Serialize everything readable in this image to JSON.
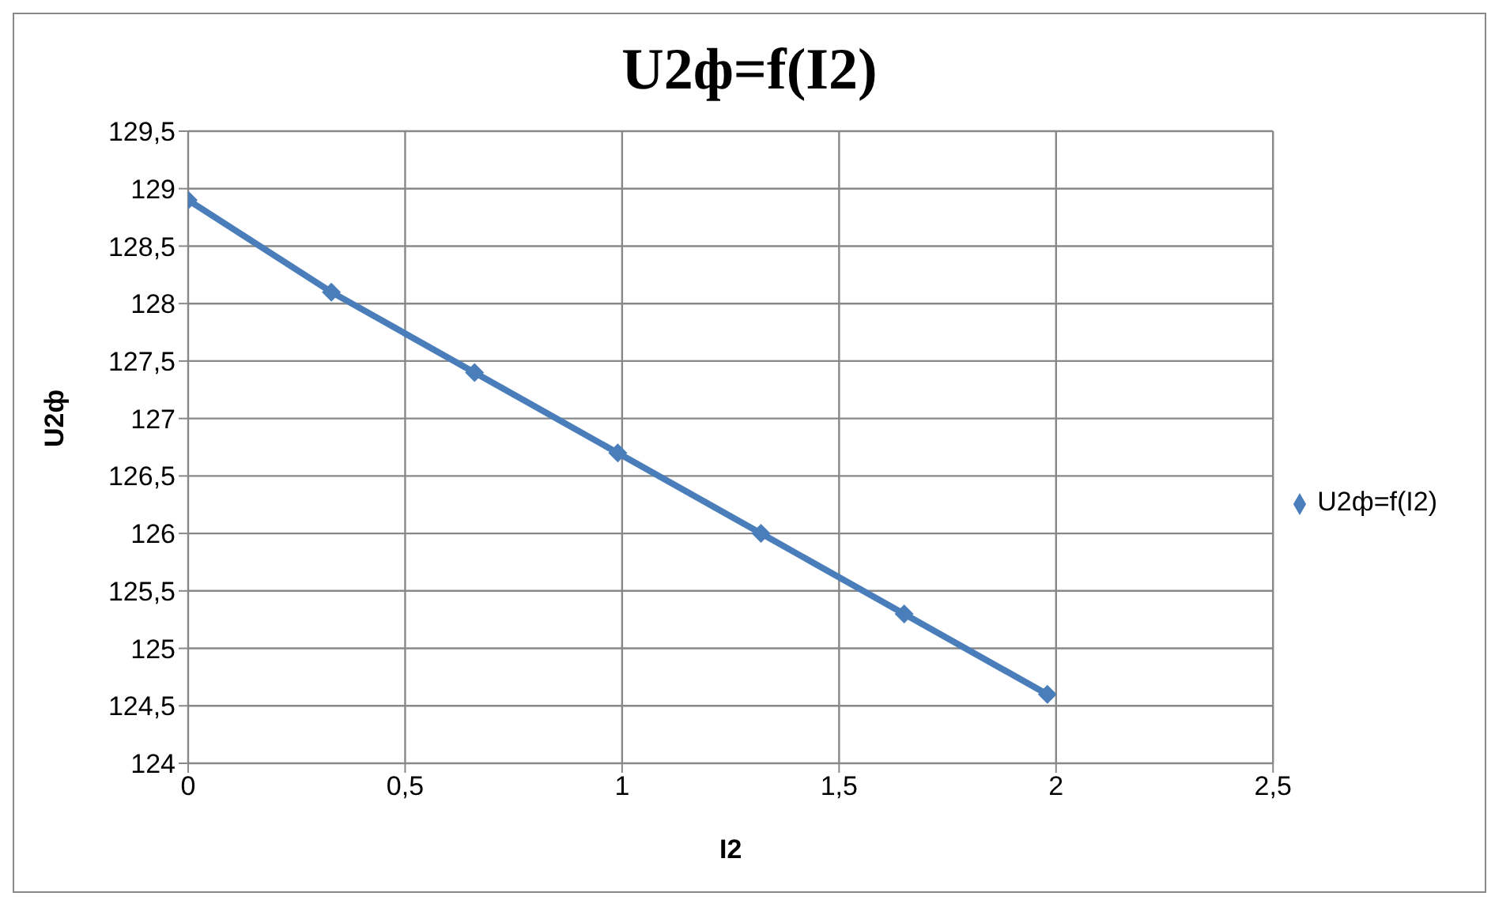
{
  "chart_data": {
    "type": "line",
    "title": "U2ф=f(I2)",
    "xlabel": "I2",
    "ylabel": "U2ф",
    "x": [
      0,
      0.33,
      0.66,
      0.99,
      1.32,
      1.65,
      1.98
    ],
    "series": [
      {
        "name": "U2ф=f(I2)",
        "color": "#4a7ebb",
        "values": [
          128.9,
          128.1,
          127.4,
          126.7,
          126.0,
          125.3,
          124.6
        ]
      }
    ],
    "xlim": [
      0,
      2.5
    ],
    "xticks": [
      0,
      {
        "value": 0.5,
        "label": "0,5"
      },
      1,
      {
        "value": 1.5,
        "label": "1,5"
      },
      2,
      {
        "value": 2.5,
        "label": "2,5"
      }
    ],
    "ylim": [
      124,
      129.5
    ],
    "yticks": [
      124,
      {
        "value": 124.5,
        "label": "124,5"
      },
      125,
      {
        "value": 125.5,
        "label": "125,5"
      },
      126,
      {
        "value": 126.5,
        "label": "126,5"
      },
      127,
      {
        "value": 127.5,
        "label": "127,5"
      },
      128,
      {
        "value": 128.5,
        "label": "128,5"
      },
      129,
      {
        "value": 129.5,
        "label": "129,5"
      }
    ],
    "grid": true,
    "legend": "right",
    "marker": "diamond",
    "line_style": "solid"
  }
}
